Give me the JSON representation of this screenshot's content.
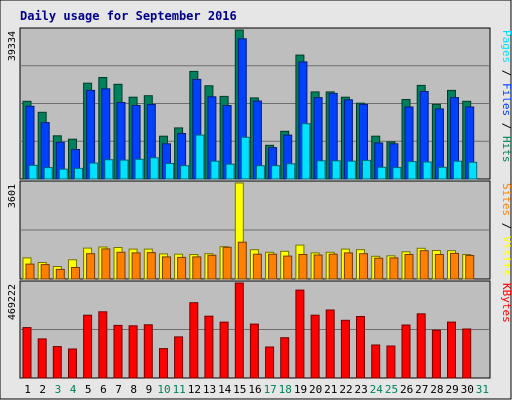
{
  "title": "Daily usage for September 2016",
  "colors": {
    "background": "#bebebe",
    "frame": "#e6e6e6",
    "hits": "#00805c",
    "files": "#0040ff",
    "pages": "#00e0ff",
    "visits": "#ffff00",
    "sites": "#ff8000",
    "kbytes": "#ff0000",
    "weekday_label": "#000000",
    "weekend_label": "#00805c",
    "separator": "#000000"
  },
  "chart_data": {
    "type": "bar",
    "categories": [
      "1",
      "2",
      "3",
      "4",
      "5",
      "6",
      "7",
      "8",
      "9",
      "10",
      "11",
      "12",
      "13",
      "14",
      "15",
      "16",
      "17",
      "18",
      "19",
      "20",
      "21",
      "22",
      "23",
      "24",
      "25",
      "26",
      "27",
      "28",
      "29",
      "30",
      "31"
    ],
    "weekend_days": [
      "3",
      "4",
      "10",
      "11",
      "17",
      "18",
      "24",
      "25",
      "31"
    ],
    "panels": [
      {
        "name": "usage",
        "ymax_label": "39334",
        "ymax": 39334,
        "right_labels": [
          {
            "text": "Pages",
            "color": "#00e0ff"
          },
          {
            "text": " / ",
            "color": "#000000"
          },
          {
            "text": "Files",
            "color": "#0040ff"
          },
          {
            "text": " / ",
            "color": "#000000"
          },
          {
            "text": "Hits",
            "color": "#00805c"
          }
        ],
        "series": [
          {
            "name": "Hits",
            "color": "#00805c",
            "offset": 0,
            "values": [
              20500,
              17600,
              11400,
              10500,
              25300,
              26800,
              25000,
              21600,
              22000,
              11300,
              13500,
              28400,
              24600,
              21800,
              39334,
              21400,
              8900,
              12600,
              32700,
              23000,
              23000,
              21600,
              20000,
              11300,
              9800,
              21000,
              24700,
              19700,
              23400,
              20500,
              0
            ]
          },
          {
            "name": "Files",
            "color": "#0040ff",
            "offset": 1,
            "values": [
              19200,
              14900,
              9700,
              7800,
              23400,
              23800,
              20200,
              19400,
              19700,
              9300,
              12000,
              26300,
              21700,
              19400,
              37000,
              20600,
              8300,
              11600,
              30900,
              21500,
              22600,
              20900,
              19700,
              9500,
              9300,
              19000,
              23100,
              18500,
              21500,
              19000,
              0
            ]
          },
          {
            "name": "Pages",
            "color": "#00e0ff",
            "offset": 2,
            "values": [
              3600,
              3000,
              2600,
              2800,
              4200,
              5100,
              5000,
              5200,
              5600,
              4100,
              3500,
              11600,
              4700,
              3900,
              11000,
              3500,
              3500,
              4000,
              14600,
              4800,
              4800,
              4700,
              4900,
              3100,
              3000,
              4600,
              4500,
              3100,
              4700,
              4400,
              0
            ]
          }
        ]
      },
      {
        "name": "visits",
        "ymax_label": "3601",
        "ymax": 3601,
        "right_labels": [
          {
            "text": "Sites",
            "color": "#ff8000"
          },
          {
            "text": " / ",
            "color": "#000000"
          },
          {
            "text": "Visits",
            "color": "#ffff00"
          }
        ],
        "series": [
          {
            "name": "Visits",
            "color": "#ffff00",
            "offset": 0,
            "values": [
              790,
              620,
              470,
              720,
              1160,
              1200,
              1180,
              1120,
              1120,
              940,
              930,
              920,
              950,
              1210,
              3601,
              1100,
              1000,
              1040,
              1270,
              980,
              1000,
              1120,
              1100,
              850,
              870,
              1020,
              1150,
              1070,
              1060,
              920,
              0
            ]
          },
          {
            "name": "Sites",
            "color": "#ff8000",
            "offset": 1,
            "values": [
              560,
              540,
              360,
              430,
              950,
              1130,
              1000,
              980,
              990,
              830,
              810,
              830,
              890,
              1190,
              1380,
              930,
              930,
              860,
              920,
              900,
              930,
              980,
              950,
              780,
              790,
              920,
              1060,
              920,
              960,
              880,
              0
            ]
          }
        ]
      },
      {
        "name": "kbytes",
        "ymax_label": "469222",
        "ymax": 469222,
        "right_labels": [
          {
            "text": "KBytes",
            "color": "#ff0000"
          }
        ],
        "series": [
          {
            "name": "KBytes",
            "color": "#ff0000",
            "offset": 0,
            "values": [
              249000,
              193000,
              155000,
              143000,
              310000,
              327000,
              260000,
              258000,
              263000,
              145000,
              203000,
              372000,
              305000,
              276000,
              469222,
              266000,
              153000,
              199000,
              434000,
              310000,
              336000,
              285000,
              304000,
              163000,
              158000,
              262000,
              317000,
              236000,
              276000,
              242000,
              0
            ]
          }
        ]
      }
    ]
  }
}
